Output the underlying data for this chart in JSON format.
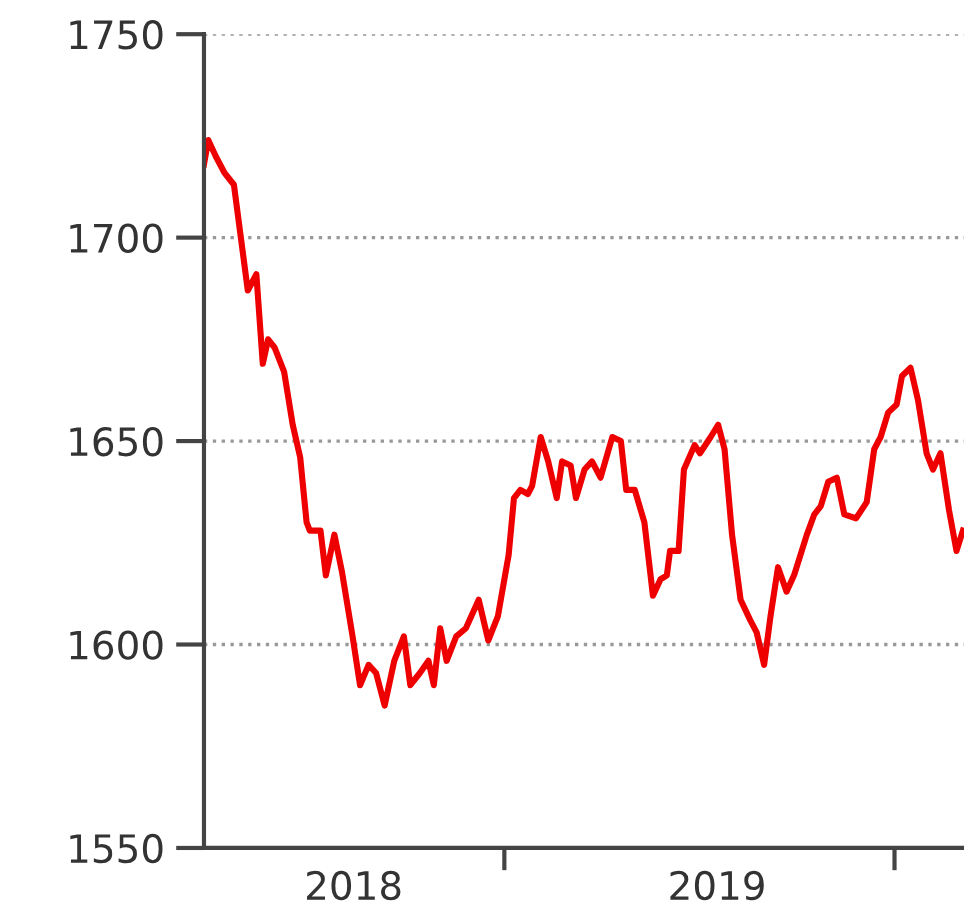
{
  "chart_data": {
    "type": "line",
    "x": [
      "2018-03-26",
      "2018-03-30",
      "2018-04-06",
      "2018-04-14",
      "2018-04-23",
      "2018-05-01",
      "2018-05-06",
      "2018-05-14",
      "2018-05-20",
      "2018-05-25",
      "2018-05-31",
      "2018-06-09",
      "2018-06-17",
      "2018-06-24",
      "2018-06-30",
      "2018-07-03",
      "2018-07-13",
      "2018-07-18",
      "2018-07-26",
      "2018-08-02",
      "2018-08-12",
      "2018-08-19",
      "2018-08-27",
      "2018-09-03",
      "2018-09-11",
      "2018-09-20",
      "2018-09-29",
      "2018-10-05",
      "2018-10-14",
      "2018-10-22",
      "2018-10-27",
      "2018-11-02",
      "2018-11-08",
      "2018-11-17",
      "2018-11-26",
      "2018-12-08",
      "2018-12-17",
      "2018-12-26",
      "2019-01-05",
      "2019-01-10",
      "2019-01-16",
      "2019-01-23",
      "2019-01-27",
      "2019-02-04",
      "2019-02-11",
      "2019-02-19",
      "2019-02-24",
      "2019-03-04",
      "2019-03-09",
      "2019-03-17",
      "2019-03-24",
      "2019-04-01",
      "2019-04-12",
      "2019-04-20",
      "2019-04-25",
      "2019-05-03",
      "2019-05-12",
      "2019-05-20",
      "2019-05-27",
      "2019-06-02",
      "2019-06-05",
      "2019-06-13",
      "2019-06-18",
      "2019-06-28",
      "2019-07-03",
      "2019-07-13",
      "2019-07-20",
      "2019-07-26",
      "2019-08-02",
      "2019-08-10",
      "2019-08-19",
      "2019-08-25",
      "2019-09-01",
      "2019-09-07",
      "2019-09-14",
      "2019-09-22",
      "2019-09-29",
      "2019-10-11",
      "2019-10-18",
      "2019-10-24",
      "2019-10-31",
      "2019-11-08",
      "2019-11-15",
      "2019-11-26",
      "2019-12-06",
      "2019-12-13",
      "2019-12-19",
      "2019-12-26",
      "2020-01-03",
      "2020-01-08",
      "2020-01-16",
      "2020-01-23",
      "2020-01-31",
      "2020-02-06",
      "2020-02-13",
      "2020-02-21",
      "2020-02-28",
      "2020-03-05"
    ],
    "series": [
      {
        "color": "#ee0000",
        "values": [
          1718,
          1724,
          1720,
          1716,
          1713,
          1697,
          1687,
          1691,
          1669,
          1675,
          1673,
          1667,
          1654,
          1646,
          1630,
          1628,
          1628,
          1617,
          1627,
          1618,
          1602,
          1590,
          1595,
          1593,
          1585,
          1596,
          1602,
          1590,
          1593,
          1596,
          1590,
          1604,
          1596,
          1602,
          1604,
          1611,
          1601,
          1607,
          1622,
          1636,
          1638,
          1637,
          1639,
          1651,
          1645,
          1636,
          1645,
          1644,
          1636,
          1643,
          1645,
          1641,
          1651,
          1650,
          1638,
          1638,
          1630,
          1612,
          1616,
          1617,
          1623,
          1623,
          1643,
          1649,
          1647,
          1651,
          1654,
          1648,
          1627,
          1611,
          1606,
          1603,
          1595,
          1607,
          1619,
          1613,
          1617,
          1627,
          1632,
          1634,
          1640,
          1641,
          1632,
          1631,
          1635,
          1648,
          1651,
          1657,
          1659,
          1666,
          1668,
          1660,
          1647,
          1643,
          1647,
          1633,
          1623,
          1628
        ]
      }
    ],
    "xlim": [
      "2018-03-26",
      "2020-03-06"
    ],
    "xticks": [
      {
        "value": "2019-01-01",
        "label": null
      },
      {
        "value": "2020-01-01",
        "label": null
      },
      {
        "value": "2018-08-13",
        "label": "2018"
      },
      {
        "value": "2019-07-19",
        "label": "2019"
      }
    ],
    "ylim": [
      1550,
      1750
    ],
    "yticks": [
      1550,
      1600,
      1650,
      1700,
      1750
    ],
    "grid": "y",
    "line_style": "solid",
    "marker": "none",
    "legend": false
  }
}
